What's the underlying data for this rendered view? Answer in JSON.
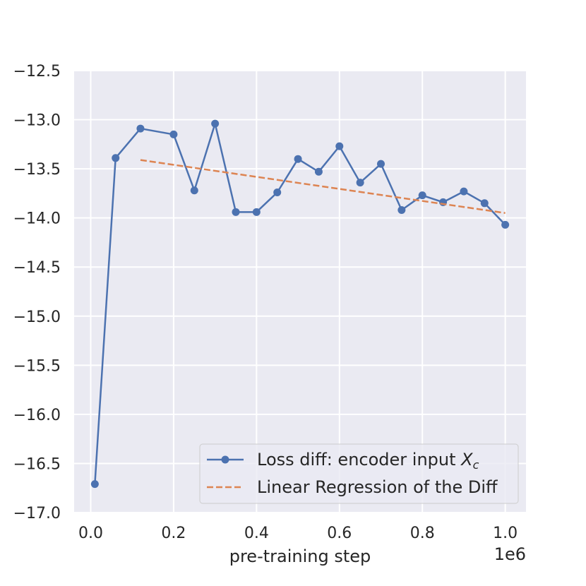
{
  "chart_data": {
    "type": "line",
    "title": "",
    "xlabel": "pre-training step",
    "ylabel": "",
    "x_offset_label": "1e6",
    "xlim": [
      -0.04,
      1.05
    ],
    "ylim": [
      -17.0,
      -12.5
    ],
    "x_ticks": [
      0.0,
      0.2,
      0.4,
      0.6,
      0.8,
      1.0
    ],
    "x_tick_labels": [
      "0.0",
      "0.2",
      "0.4",
      "0.6",
      "0.8",
      "1.0"
    ],
    "y_ticks": [
      -12.5,
      -13.0,
      -13.5,
      -14.0,
      -14.5,
      -15.0,
      -15.5,
      -16.0,
      -16.5,
      -17.0
    ],
    "y_tick_labels": [
      "−12.5",
      "−13.0",
      "−13.5",
      "−14.0",
      "−14.5",
      "−15.0",
      "−15.5",
      "−16.0",
      "−16.5",
      "−17.0"
    ],
    "grid": true,
    "legend_position": "lower-right",
    "series": [
      {
        "name": "Loss diff: encoder input X_c",
        "legend_main": "Loss diff: encoder input ",
        "legend_var": "X",
        "legend_sub": "c",
        "color": "#4c72b0",
        "style": "solid-marker",
        "x": [
          0.01,
          0.06,
          0.12,
          0.2,
          0.25,
          0.3,
          0.35,
          0.4,
          0.45,
          0.5,
          0.55,
          0.6,
          0.65,
          0.7,
          0.75,
          0.8,
          0.85,
          0.9,
          0.95,
          1.0
        ],
        "y": [
          -16.71,
          -13.39,
          -13.09,
          -13.15,
          -13.72,
          -13.04,
          -13.94,
          -13.94,
          -13.74,
          -13.4,
          -13.53,
          -13.27,
          -13.64,
          -13.45,
          -13.92,
          -13.77,
          -13.84,
          -13.73,
          -13.85,
          -14.07
        ]
      },
      {
        "name": "Linear Regression of the Diff",
        "legend_main": "Linear Regression of the Diff",
        "color": "#dd8452",
        "style": "dashed",
        "x": [
          0.12,
          1.0
        ],
        "y": [
          -13.41,
          -13.95
        ]
      }
    ]
  }
}
